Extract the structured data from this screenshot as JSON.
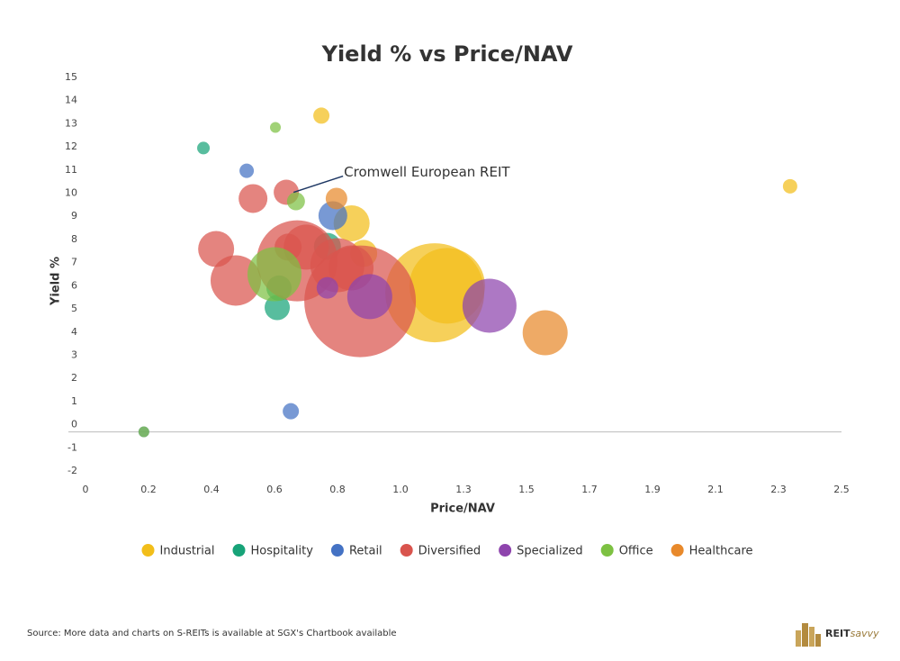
{
  "chart_data": {
    "type": "bubble",
    "title": "Yield % vs Price/NAV",
    "x_label": "Price/NAV",
    "y_label": "Yield %",
    "xlim": [
      0,
      2.5
    ],
    "xticks": [
      0,
      {
        "value": 0.2083,
        "label": "0.2"
      },
      {
        "value": 0.4167,
        "label": "0.4"
      },
      {
        "value": 0.625,
        "label": "0.6"
      },
      {
        "value": 0.8333,
        "label": "0.8"
      },
      {
        "value": 1.0417,
        "label": "1.0"
      },
      {
        "value": 1.25,
        "label": "1.3"
      },
      {
        "value": 1.4583,
        "label": "1.5"
      },
      {
        "value": 1.6667,
        "label": "1.7"
      },
      {
        "value": 1.875,
        "label": "1.9"
      },
      {
        "value": 2.0833,
        "label": "2.1"
      },
      {
        "value": 2.2917,
        "label": "2.3"
      },
      2.5
    ],
    "ylim": [
      -2,
      15
    ],
    "yticks": [
      -2,
      -1,
      0,
      1,
      2,
      3,
      4,
      5,
      6,
      7,
      8,
      9,
      10,
      11,
      12,
      13,
      14,
      15
    ],
    "series": [
      {
        "name": "Industrial",
        "color": "#f2be1a",
        "x": [
          0.78,
          2.33,
          0.88,
          0.92,
          1.155,
          1.196
        ],
        "values": [
          13.35,
          10.3,
          8.7,
          7.4,
          5.7,
          6.0
        ],
        "sizes": [
          9,
          8,
          20,
          15,
          55,
          42
        ]
      },
      {
        "name": "Hospitality",
        "color": "#17a378",
        "x": [
          0.39,
          0.634,
          0.64,
          0.8
        ],
        "values": [
          11.95,
          5.06,
          5.9,
          7.7
        ],
        "sizes": [
          7,
          14,
          14,
          15
        ]
      },
      {
        "name": "Retail",
        "color": "#4472c4",
        "x": [
          0.533,
          0.818,
          0.679,
          0.193
        ],
        "values": [
          10.97,
          9.03,
          0.58,
          -0.31
        ],
        "sizes": [
          8,
          16,
          9,
          6
        ]
      },
      {
        "name": "Diversified",
        "color": "#d9544d",
        "x": [
          0.554,
          0.664,
          0.432,
          0.497,
          0.908,
          0.7,
          0.73,
          0.833,
          0.878,
          0.67
        ],
        "values": [
          9.77,
          10.04,
          7.59,
          6.23,
          5.33,
          7.08,
          7.67,
          6.89,
          6.77,
          7.67
        ],
        "sizes": [
          16,
          14,
          20,
          28,
          62,
          45,
          25,
          30,
          25,
          15
        ]
      },
      {
        "name": "Specialized",
        "color": "#8e44ad",
        "x": [
          1.336,
          0.8,
          0.94
        ],
        "values": [
          5.14,
          5.91,
          5.53
        ],
        "sizes": [
          30,
          12,
          25
        ]
      },
      {
        "name": "Office",
        "color": "#7dc142",
        "x": [
          0.628,
          0.696,
          0.625,
          0.193
        ],
        "values": [
          12.84,
          9.65,
          6.5,
          -0.31
        ],
        "sizes": [
          6,
          10,
          30,
          6
        ]
      },
      {
        "name": "Healthcare",
        "color": "#e8892b",
        "x": [
          0.83,
          1.52
        ],
        "values": [
          9.77,
          3.97
        ],
        "sizes": [
          12,
          25
        ]
      }
    ],
    "annotation": {
      "text": "Cromwell European REIT",
      "x": 0.679,
      "y": 10.0
    },
    "source": "Source: More data and charts on S-REITs is available at SGX's Chartbook available",
    "brand": {
      "bold": "REIT",
      "light": "savvy"
    }
  }
}
